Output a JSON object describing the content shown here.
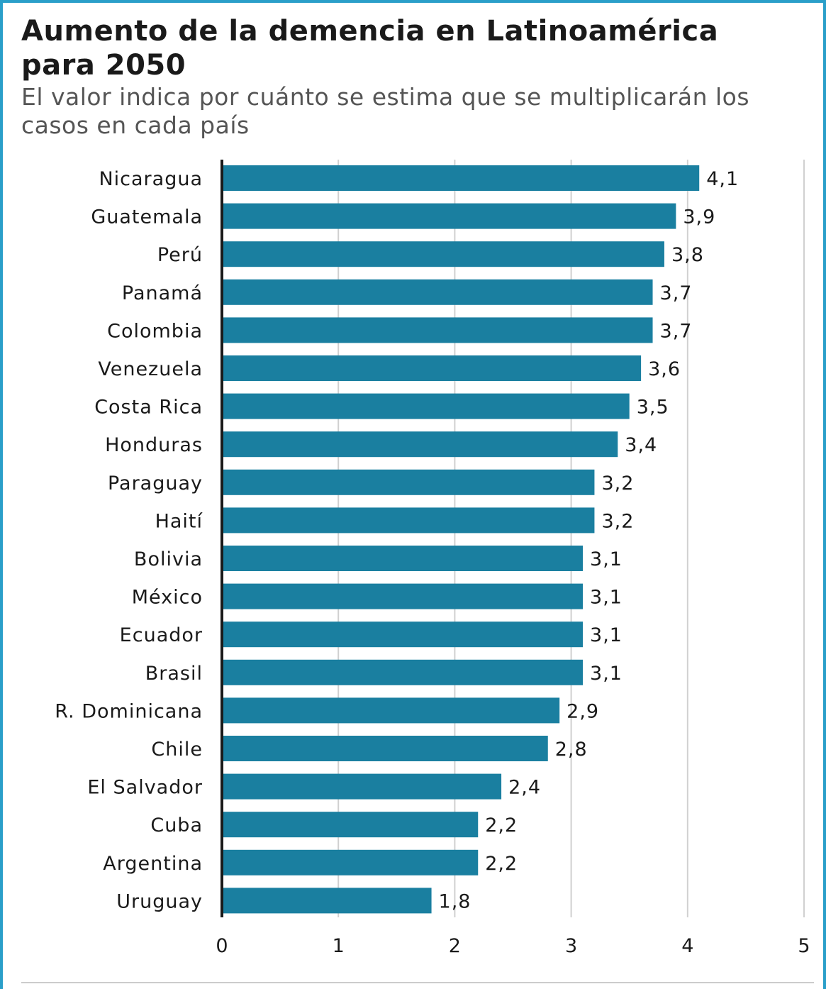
{
  "chart_data": {
    "type": "bar",
    "orientation": "horizontal",
    "title": "Aumento de la demencia en Latinoamérica para 2050",
    "subtitle": "El valor indica por cuánto se estima que se multiplicarán los casos en cada país",
    "categories": [
      "Nicaragua",
      "Guatemala",
      "Perú",
      "Panamá",
      "Colombia",
      "Venezuela",
      "Costa Rica",
      "Honduras",
      "Paraguay",
      "Haití",
      "Bolivia",
      "México",
      "Ecuador",
      "Brasil",
      "R. Dominicana",
      "Chile",
      "El Salvador",
      "Cuba",
      "Argentina",
      "Uruguay"
    ],
    "values": [
      4.1,
      3.9,
      3.8,
      3.7,
      3.7,
      3.6,
      3.5,
      3.4,
      3.2,
      3.2,
      3.1,
      3.1,
      3.1,
      3.1,
      2.9,
      2.8,
      2.4,
      2.2,
      2.2,
      1.8
    ],
    "value_labels": [
      "4,1",
      "3,9",
      "3,8",
      "3,7",
      "3,7",
      "3,6",
      "3,5",
      "3,4",
      "3,2",
      "3,2",
      "3,1",
      "3,1",
      "3,1",
      "3,1",
      "2,9",
      "2,8",
      "2,4",
      "2,2",
      "2,2",
      "1,8"
    ],
    "xticks": [
      "0",
      "1",
      "2",
      "3",
      "4",
      "5"
    ],
    "xlim": [
      0,
      5
    ],
    "grid": true,
    "bar_color": "#1a7fa0",
    "gridline_color": "#d0d0d0",
    "axis_color": "#1a1a1a"
  }
}
